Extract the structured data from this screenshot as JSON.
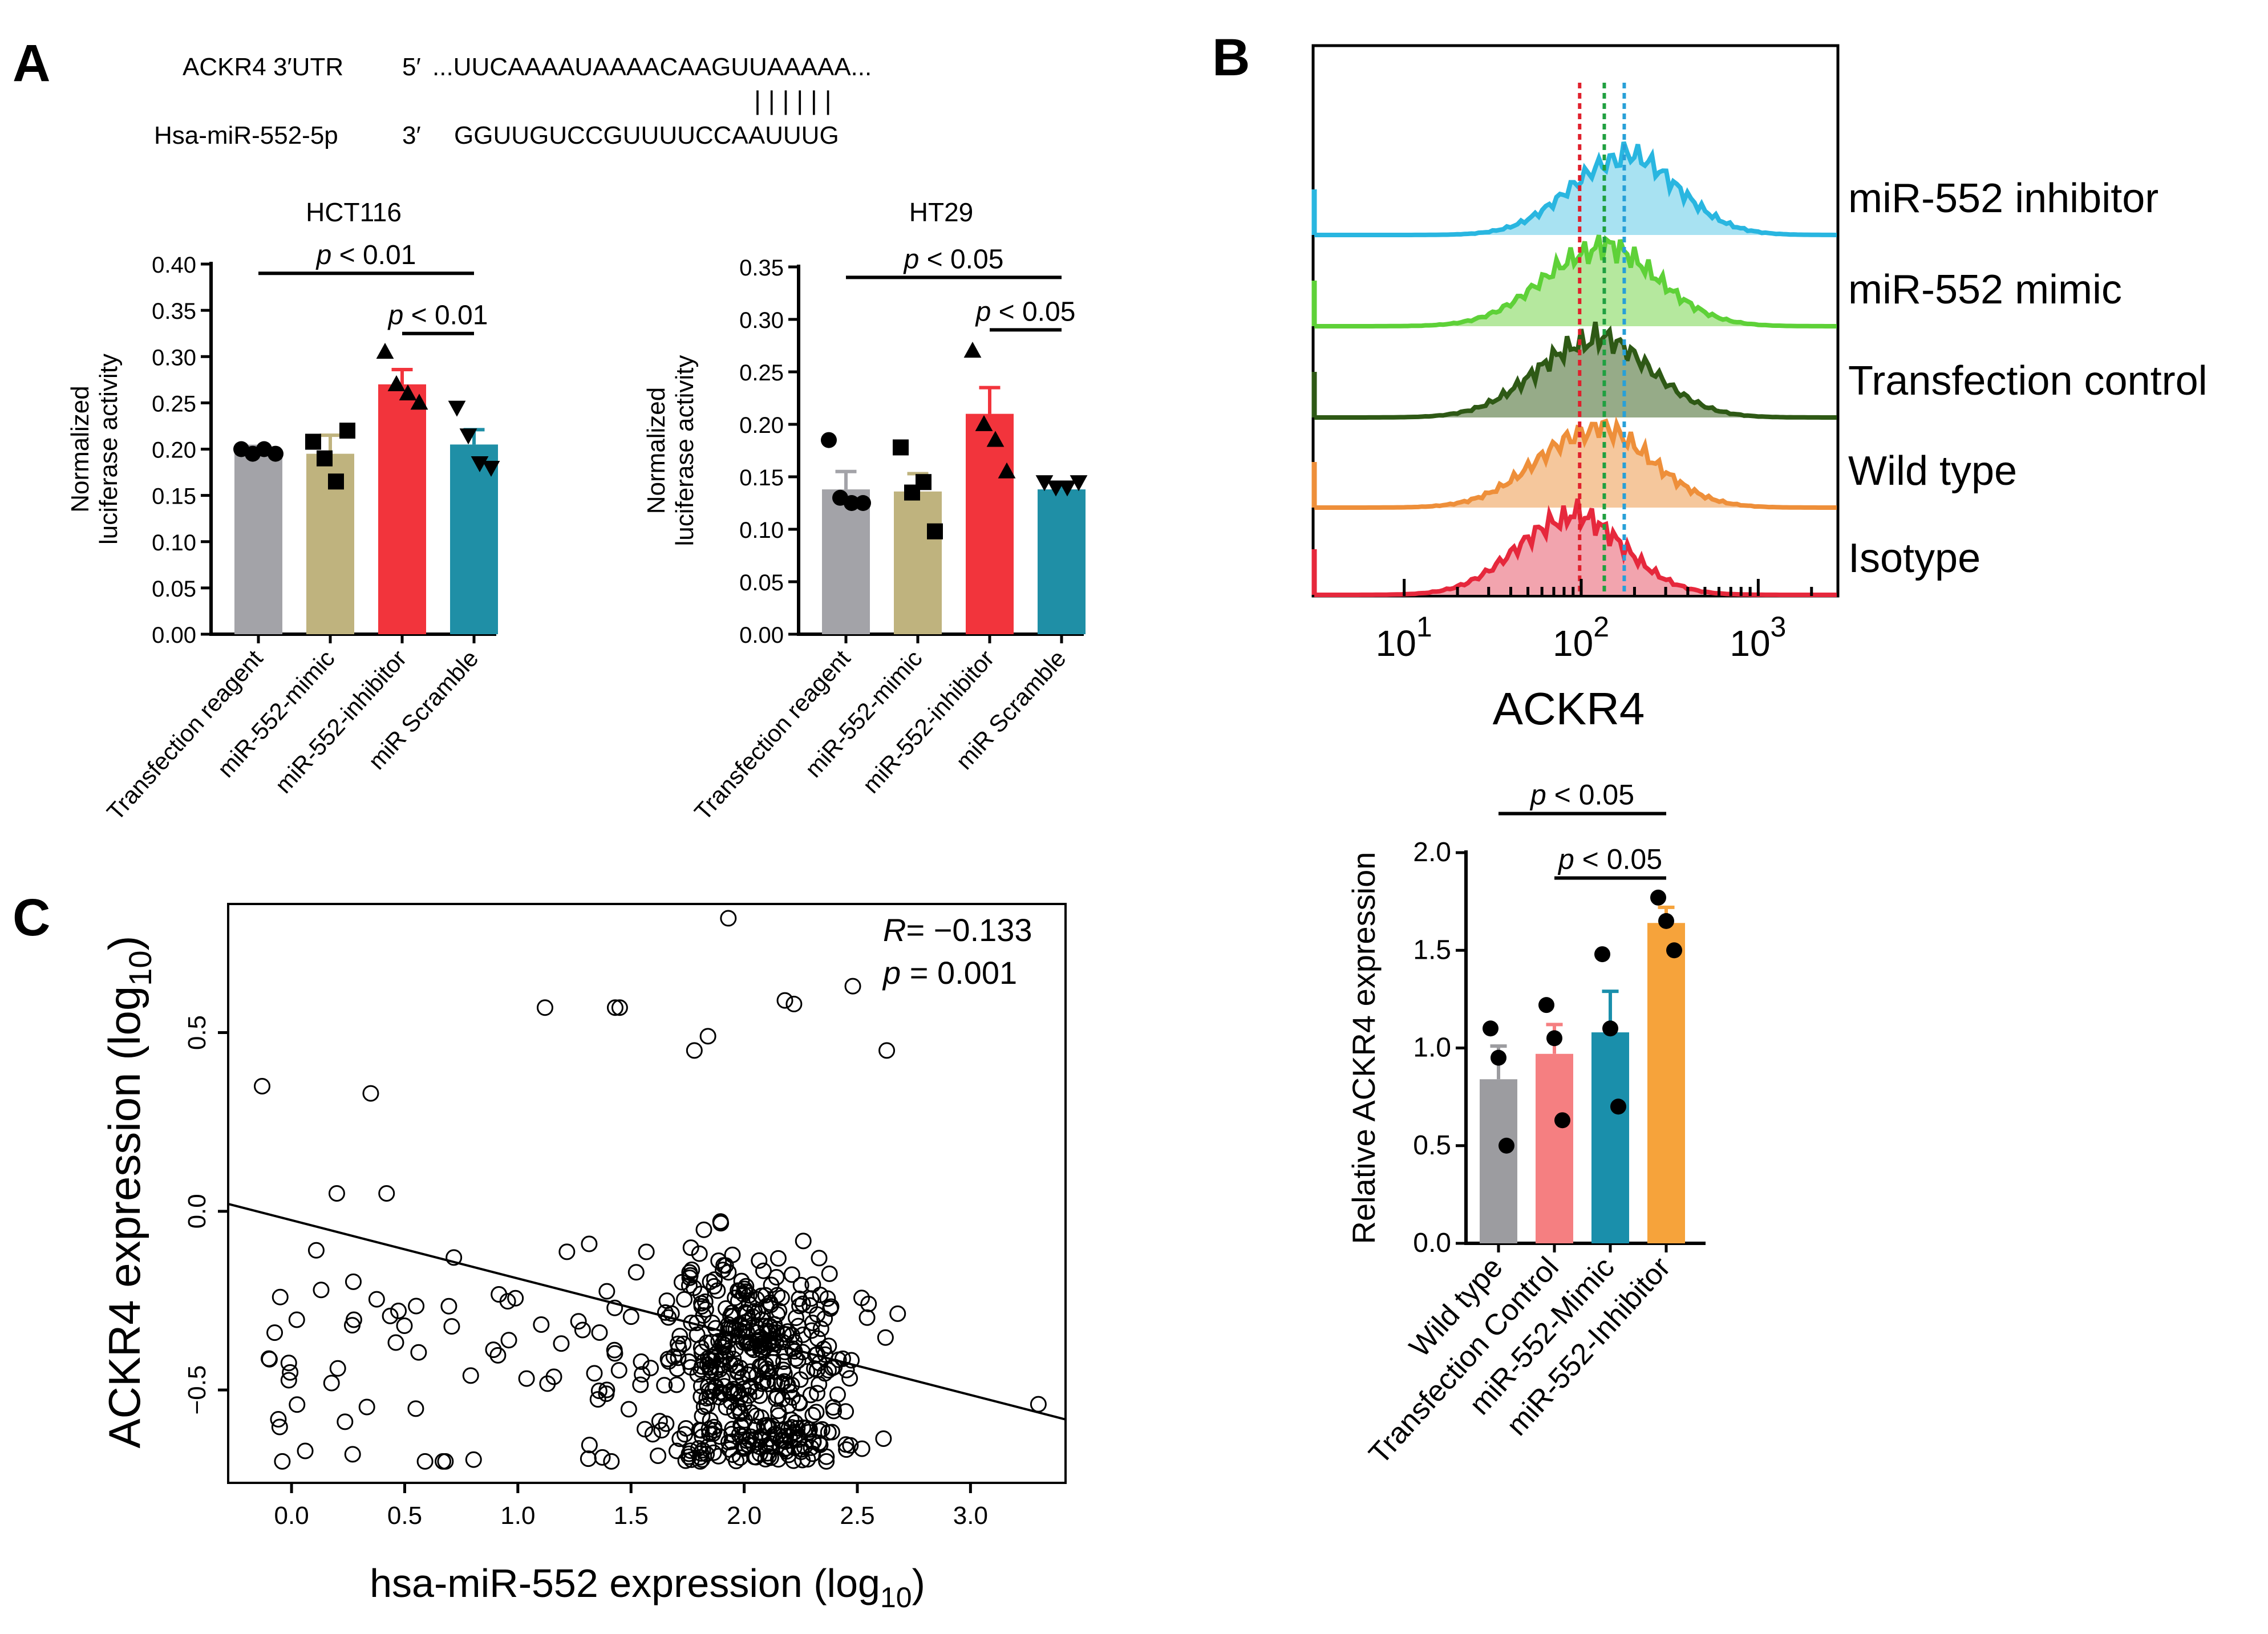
{
  "panel_labels": {
    "a": "A",
    "b": "B",
    "c": "C"
  },
  "sequence": {
    "utr_name": "ACKR4 3′UTR",
    "utr_end": "5′",
    "utr_seq": "...UUCAAAAUAAAACAAGUUAAAAA...",
    "mir_name": "Hsa-miR-552-5p",
    "mir_end": "3′",
    "mir_seq": "GGUUGUCCGUUUUCCAAUUUG",
    "pairing": "| | | | | |"
  },
  "chart_data": [
    {
      "id": "hct116",
      "type": "bar",
      "title": "HCT116",
      "ylabel_lines": [
        "Normalized",
        "luciferase activity"
      ],
      "ylim": [
        0,
        0.4
      ],
      "yticks": [
        0.0,
        0.05,
        0.1,
        0.15,
        0.2,
        0.25,
        0.3,
        0.35,
        0.4
      ],
      "ytick_labels": [
        "0.00",
        "0.05",
        "0.10",
        "0.15",
        "0.20",
        "0.25",
        "0.30",
        "0.35",
        "0.40"
      ],
      "categories": [
        "Transfection reagent",
        "miR-552-mimic",
        "miR-552-inhibitor",
        "miR Scramble"
      ],
      "values": [
        0.197,
        0.195,
        0.27,
        0.205
      ],
      "errors": [
        0.006,
        0.02,
        0.016,
        0.016
      ],
      "colors": [
        "#a3a3a8",
        "#bfb37e",
        "#f2343c",
        "#1f8fa6"
      ],
      "markers": [
        "circle",
        "square",
        "triangle",
        "triangle-down"
      ],
      "points": [
        [
          0.2,
          0.195,
          0.2,
          0.195
        ],
        [
          0.208,
          0.19,
          0.165,
          0.22
        ],
        [
          0.305,
          0.27,
          0.26,
          0.25
        ],
        [
          0.245,
          0.215,
          0.185,
          0.18
        ]
      ],
      "significance": [
        {
          "from": 0,
          "to": 3,
          "label": "p < 0.01",
          "y": 0.39
        },
        {
          "from": 2,
          "to": 3,
          "label": "p < 0.01",
          "y": 0.325
        }
      ]
    },
    {
      "id": "ht29",
      "type": "bar",
      "title": "HT29",
      "ylabel_lines": [
        "Normalized",
        "luciferase activity"
      ],
      "ylim": [
        0,
        0.35
      ],
      "yticks": [
        0.0,
        0.05,
        0.1,
        0.15,
        0.2,
        0.25,
        0.3,
        0.35
      ],
      "ytick_labels": [
        "0.00",
        "0.05",
        "0.10",
        "0.15",
        "0.20",
        "0.25",
        "0.30",
        "0.35"
      ],
      "categories": [
        "Transfection reagent",
        "miR-552-mimic",
        "miR-552-inhibitor",
        "miR Scramble"
      ],
      "values": [
        0.138,
        0.136,
        0.21,
        0.138
      ],
      "errors": [
        0.017,
        0.017,
        0.025,
        0.006
      ],
      "colors": [
        "#a3a3a8",
        "#bfb37e",
        "#f2343c",
        "#1f8fa6"
      ],
      "markers": [
        "circle",
        "square",
        "triangle",
        "triangle-down"
      ],
      "points": [
        [
          0.185,
          0.13,
          0.125,
          0.125
        ],
        [
          0.178,
          0.135,
          0.145,
          0.098
        ],
        [
          0.27,
          0.2,
          0.185,
          0.155
        ],
        [
          0.145,
          0.14,
          0.14,
          0.145
        ]
      ],
      "significance": [
        {
          "from": 0,
          "to": 3,
          "label": "p < 0.05",
          "y": 0.34
        },
        {
          "from": 2,
          "to": 3,
          "label": "p < 0.05",
          "y": 0.29
        }
      ]
    },
    {
      "id": "flow",
      "type": "area",
      "xlabel": "ACKR4",
      "xscale": "log",
      "xtick_labels": [
        {
          "base": "10",
          "exp": "1"
        },
        {
          "base": "10",
          "exp": "2"
        },
        {
          "base": "10",
          "exp": "3"
        }
      ],
      "series": [
        {
          "name": "miR-552 inhibitor",
          "color": "#29b6e0",
          "fill": "#a8e2f2",
          "peak": 170,
          "spread": 0.3
        },
        {
          "name": "miR-552 mimic",
          "color": "#5ed138",
          "fill": "#b5e89e",
          "peak": 125,
          "spread": 0.32
        },
        {
          "name": "Transfection control",
          "color": "#2e5915",
          "fill": "#96ab88",
          "peak": 115,
          "spread": 0.32
        },
        {
          "name": "Wild type",
          "color": "#ee8f3a",
          "fill": "#f5c79c",
          "peak": 115,
          "spread": 0.32
        },
        {
          "name": "Isotype",
          "color": "#e6283c",
          "fill": "#f2a4ae",
          "peak": 85,
          "spread": 0.3
        }
      ],
      "reference_lines": [
        {
          "x": 98,
          "color": "#e0202c"
        },
        {
          "x": 135,
          "color": "#20a040"
        },
        {
          "x": 175,
          "color": "#28a0d8"
        }
      ]
    },
    {
      "id": "relexpr",
      "type": "bar",
      "ylabel": "Relative ACKR4 expression",
      "ylim": [
        0,
        2.0
      ],
      "yticks": [
        0.0,
        0.5,
        1.0,
        1.5,
        2.0
      ],
      "ytick_labels": [
        "0.0",
        "0.5",
        "1.0",
        "1.5",
        "2.0"
      ],
      "categories": [
        "Wild type",
        "Transfection Control",
        "miR-552-Mimic",
        "miR-552-Inhibitor"
      ],
      "values": [
        0.84,
        0.97,
        1.08,
        1.64
      ],
      "errors": [
        0.17,
        0.15,
        0.21,
        0.08
      ],
      "colors": [
        "#9c9ca0",
        "#f57f81",
        "#1a8fab",
        "#f6a33b"
      ],
      "points": [
        [
          1.1,
          0.95,
          0.5
        ],
        [
          1.22,
          1.05,
          0.63
        ],
        [
          1.48,
          1.1,
          0.7
        ],
        [
          1.77,
          1.65,
          1.5
        ]
      ],
      "significance": [
        {
          "from": 0,
          "to": 3,
          "label": "p < 0.05",
          "y": 2.2
        },
        {
          "from": 1,
          "to": 3,
          "label": "p < 0.05",
          "y": 1.87
        }
      ]
    },
    {
      "id": "scatter",
      "type": "scatter",
      "xlabel": "hsa-miR-552 expression (log",
      "xlabel_sub": "10",
      "xlabel_end": ")",
      "ylabel": "ACKR4 expression (log",
      "ylabel_sub": "10",
      "ylabel_end": ")",
      "xlim": [
        -0.28,
        3.42
      ],
      "ylim": [
        -0.76,
        0.86
      ],
      "xticks": [
        0.0,
        0.5,
        1.0,
        1.5,
        2.0,
        2.5,
        3.0
      ],
      "xtick_labels": [
        "0.0",
        "0.5",
        "1.0",
        "1.5",
        "2.0",
        "2.5",
        "3.0"
      ],
      "yticks": [
        -0.5,
        0.0,
        0.5
      ],
      "ytick_labels": [
        "−0.5",
        "0.0",
        "0.5"
      ],
      "regression": {
        "slope": -0.163,
        "intercept": -0.025
      },
      "stats": {
        "r_label": "R",
        "r_value": "= −0.133",
        "p_label": "p",
        "p_value": "= 0.001"
      },
      "point_count": 520,
      "outliers": [
        [
          1.93,
          0.82
        ],
        [
          1.12,
          0.57
        ],
        [
          1.43,
          0.57
        ],
        [
          1.45,
          0.57
        ],
        [
          2.18,
          0.59
        ],
        [
          2.22,
          0.58
        ],
        [
          2.48,
          0.63
        ],
        [
          -0.13,
          0.35
        ],
        [
          0.35,
          0.33
        ],
        [
          1.78,
          0.45
        ],
        [
          1.84,
          0.49
        ],
        [
          2.63,
          0.45
        ],
        [
          3.3,
          -0.54
        ],
        [
          0.27,
          -0.68
        ],
        [
          0.68,
          -0.7
        ],
        [
          -0.05,
          -0.24
        ],
        [
          0.2,
          0.05
        ],
        [
          0.42,
          0.05
        ]
      ]
    }
  ]
}
